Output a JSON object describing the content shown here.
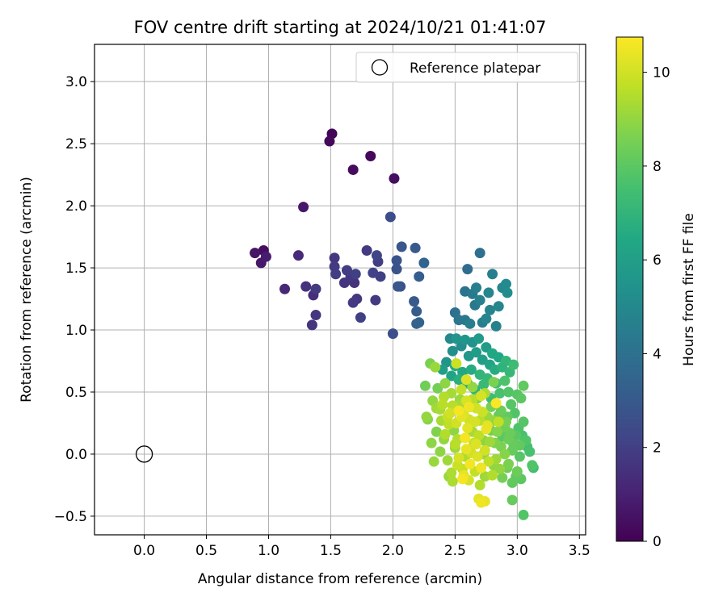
{
  "chart_data": {
    "type": "scatter",
    "title": "FOV centre drift starting at 2024/10/21 01:41:07",
    "xlabel": "Angular distance from reference (arcmin)",
    "ylabel": "Rotation from reference (arcmin)",
    "xlim": [
      -0.4,
      3.55
    ],
    "ylim": [
      -0.65,
      3.3
    ],
    "xticks": [
      0.0,
      0.5,
      1.0,
      1.5,
      2.0,
      2.5,
      3.0,
      3.5
    ],
    "xtick_labels": [
      "0.0",
      "0.5",
      "1.0",
      "1.5",
      "2.0",
      "2.5",
      "3.0",
      "3.5"
    ],
    "yticks": [
      -0.5,
      0.0,
      0.5,
      1.0,
      1.5,
      2.0,
      2.5,
      3.0
    ],
    "ytick_labels": [
      "−0.5",
      "0.0",
      "0.5",
      "1.0",
      "1.5",
      "2.0",
      "2.5",
      "3.0"
    ],
    "grid": true,
    "legend": {
      "position": "top-right",
      "entries": [
        {
          "label": "Reference platepar",
          "marker": "open-circle"
        }
      ]
    },
    "reference_point": {
      "x": 0.0,
      "y": 0.0
    },
    "colorbar": {
      "label": "Hours from first FF file",
      "colormap": "viridis",
      "range": [
        0,
        10.75
      ],
      "ticks": [
        0,
        2,
        4,
        6,
        8,
        10
      ],
      "tick_labels": [
        "0",
        "2",
        "4",
        "6",
        "8",
        "10"
      ]
    },
    "point_color_encoding": "hours",
    "points_columns": [
      "x",
      "y",
      "hours"
    ],
    "points": [
      [
        0.89,
        1.62,
        0.6
      ],
      [
        0.94,
        1.54,
        0.7
      ],
      [
        0.96,
        1.64,
        0.4
      ],
      [
        0.98,
        1.59,
        0.8
      ],
      [
        1.13,
        1.33,
        1.2
      ],
      [
        1.24,
        1.6,
        1.3
      ],
      [
        1.28,
        1.99,
        0.7
      ],
      [
        1.3,
        1.35,
        1.5
      ],
      [
        1.35,
        1.04,
        1.6
      ],
      [
        1.36,
        1.28,
        1.4
      ],
      [
        1.38,
        1.12,
        1.7
      ],
      [
        1.38,
        1.33,
        1.8
      ],
      [
        1.49,
        2.52,
        0.2
      ],
      [
        1.51,
        2.58,
        0.1
      ],
      [
        1.53,
        1.58,
        1.7
      ],
      [
        1.53,
        1.51,
        1.8
      ],
      [
        1.54,
        1.45,
        1.9
      ],
      [
        1.61,
        1.38,
        1.6
      ],
      [
        1.63,
        1.48,
        1.9
      ],
      [
        1.66,
        1.43,
        1.7
      ],
      [
        1.68,
        1.22,
        1.8
      ],
      [
        1.68,
        2.29,
        0.3
      ],
      [
        1.69,
        1.38,
        1.5
      ],
      [
        1.7,
        1.45,
        2.0
      ],
      [
        1.71,
        1.25,
        1.7
      ],
      [
        1.74,
        1.1,
        2.0
      ],
      [
        1.79,
        1.64,
        1.8
      ],
      [
        1.82,
        2.4,
        0.2
      ],
      [
        1.84,
        1.46,
        2.1
      ],
      [
        1.86,
        1.24,
        1.8
      ],
      [
        1.87,
        1.6,
        2.2
      ],
      [
        1.88,
        1.55,
        1.9
      ],
      [
        1.9,
        1.43,
        2.0
      ],
      [
        1.98,
        1.91,
        2.5
      ],
      [
        2.0,
        0.97,
        2.6
      ],
      [
        2.01,
        2.22,
        0.4
      ],
      [
        2.03,
        1.49,
        2.7
      ],
      [
        2.03,
        1.56,
        2.8
      ],
      [
        2.04,
        1.35,
        2.9
      ],
      [
        2.06,
        1.35,
        2.6
      ],
      [
        2.07,
        1.67,
        2.9
      ],
      [
        2.17,
        1.23,
        3.0
      ],
      [
        2.18,
        1.66,
        3.0
      ],
      [
        2.19,
        1.15,
        3.1
      ],
      [
        2.19,
        1.05,
        3.3
      ],
      [
        2.21,
        1.43,
        3.2
      ],
      [
        2.21,
        1.06,
        3.4
      ],
      [
        2.25,
        1.54,
        3.5
      ],
      [
        2.5,
        1.14,
        4.0
      ],
      [
        2.53,
        1.08,
        4.2
      ],
      [
        2.58,
        1.08,
        4.3
      ],
      [
        2.62,
        1.05,
        4.5
      ],
      [
        2.58,
        1.31,
        4.1
      ],
      [
        2.6,
        1.49,
        3.8
      ],
      [
        2.64,
        1.29,
        4.4
      ],
      [
        2.66,
        1.2,
        4.3
      ],
      [
        2.67,
        1.34,
        4.6
      ],
      [
        2.7,
        1.62,
        4.0
      ],
      [
        2.7,
        1.24,
        4.7
      ],
      [
        2.72,
        1.06,
        4.5
      ],
      [
        2.75,
        1.09,
        4.8
      ],
      [
        2.77,
        1.3,
        4.9
      ],
      [
        2.78,
        1.16,
        4.8
      ],
      [
        2.8,
        1.45,
        4.6
      ],
      [
        2.83,
        1.03,
        4.7
      ],
      [
        2.85,
        1.19,
        4.9
      ],
      [
        2.88,
        1.34,
        5.0
      ],
      [
        2.91,
        1.37,
        5.1
      ],
      [
        2.92,
        1.3,
        5.2
      ],
      [
        2.46,
        0.93,
        5.0
      ],
      [
        2.48,
        0.83,
        5.3
      ],
      [
        2.51,
        0.93,
        5.5
      ],
      [
        2.55,
        0.87,
        5.2
      ],
      [
        2.58,
        0.92,
        5.6
      ],
      [
        2.61,
        0.79,
        5.7
      ],
      [
        2.64,
        0.9,
        5.4
      ],
      [
        2.67,
        0.82,
        5.9
      ],
      [
        2.69,
        0.93,
        5.8
      ],
      [
        2.72,
        0.76,
        6.0
      ],
      [
        2.75,
        0.86,
        5.9
      ],
      [
        2.78,
        0.72,
        6.2
      ],
      [
        2.8,
        0.81,
        6.4
      ],
      [
        2.82,
        0.68,
        6.6
      ],
      [
        2.85,
        0.78,
        6.3
      ],
      [
        2.88,
        0.7,
        6.9
      ],
      [
        2.91,
        0.75,
        7.0
      ],
      [
        2.94,
        0.66,
        7.1
      ],
      [
        2.97,
        0.72,
        7.3
      ],
      [
        2.43,
        0.74,
        5.5
      ],
      [
        2.4,
        0.68,
        6.0
      ],
      [
        2.47,
        0.63,
        6.2
      ],
      [
        2.5,
        0.71,
        6.5
      ],
      [
        2.53,
        0.6,
        6.7
      ],
      [
        2.56,
        0.66,
        6.4
      ],
      [
        2.6,
        0.57,
        6.8
      ],
      [
        2.63,
        0.68,
        6.6
      ],
      [
        2.66,
        0.52,
        6.9
      ],
      [
        2.7,
        0.64,
        7.0
      ],
      [
        2.73,
        0.56,
        7.2
      ],
      [
        2.76,
        0.61,
        7.1
      ],
      [
        2.79,
        0.45,
        7.4
      ],
      [
        2.83,
        0.57,
        7.5
      ],
      [
        2.86,
        0.49,
        7.6
      ],
      [
        2.9,
        0.59,
        7.7
      ],
      [
        2.93,
        0.5,
        7.8
      ],
      [
        3.0,
        0.48,
        7.9
      ],
      [
        3.03,
        0.45,
        8.0
      ],
      [
        3.05,
        0.55,
        8.1
      ],
      [
        2.36,
        0.53,
        8.5
      ],
      [
        2.32,
        0.43,
        9.0
      ],
      [
        2.38,
        0.36,
        9.3
      ],
      [
        2.41,
        0.46,
        9.5
      ],
      [
        2.44,
        0.3,
        9.8
      ],
      [
        2.48,
        0.39,
        9.6
      ],
      [
        2.51,
        0.25,
        10.0
      ],
      [
        2.54,
        0.44,
        9.1
      ],
      [
        2.57,
        0.32,
        10.2
      ],
      [
        2.6,
        0.21,
        10.3
      ],
      [
        2.62,
        0.38,
        9.4
      ],
      [
        2.66,
        0.26,
        10.1
      ],
      [
        2.69,
        0.15,
        9.7
      ],
      [
        2.72,
        0.34,
        9.9
      ],
      [
        2.75,
        0.2,
        10.4
      ],
      [
        2.78,
        0.1,
        9.2
      ],
      [
        2.81,
        0.27,
        9.0
      ],
      [
        2.84,
        0.18,
        8.8
      ],
      [
        2.87,
        0.06,
        8.6
      ],
      [
        2.9,
        0.22,
        8.4
      ],
      [
        2.93,
        0.12,
        8.3
      ],
      [
        2.96,
        0.03,
        8.2
      ],
      [
        2.99,
        0.15,
        8.0
      ],
      [
        3.02,
        0.07,
        8.1
      ],
      [
        3.05,
        0.26,
        7.9
      ],
      [
        3.07,
        0.11,
        7.8
      ],
      [
        3.1,
        0.02,
        7.6
      ],
      [
        3.12,
        -0.09,
        7.8
      ],
      [
        3.03,
        -0.2,
        8.0
      ],
      [
        3.0,
        -0.14,
        8.3
      ],
      [
        2.96,
        -0.23,
        8.1
      ],
      [
        2.93,
        -0.08,
        8.6
      ],
      [
        2.9,
        0.0,
        8.8
      ],
      [
        2.86,
        -0.12,
        9.0
      ],
      [
        2.83,
        -0.04,
        9.2
      ],
      [
        2.8,
        -0.17,
        9.5
      ],
      [
        2.77,
        -0.06,
        9.7
      ],
      [
        2.74,
        0.03,
        10.0
      ],
      [
        2.71,
        -0.11,
        10.5
      ],
      [
        2.68,
        -0.02,
        10.2
      ],
      [
        2.65,
        0.09,
        9.9
      ],
      [
        2.62,
        -0.08,
        10.6
      ],
      [
        2.59,
        0.04,
        10.4
      ],
      [
        2.56,
        -0.12,
        9.8
      ],
      [
        2.53,
        -0.03,
        10.1
      ],
      [
        2.5,
        0.08,
        9.6
      ],
      [
        2.47,
        -0.15,
        9.4
      ],
      [
        2.44,
        -0.05,
        9.2
      ],
      [
        2.41,
        0.12,
        9.0
      ],
      [
        2.38,
        0.02,
        8.9
      ],
      [
        2.35,
        0.18,
        8.7
      ],
      [
        2.33,
        -0.06,
        9.1
      ],
      [
        2.31,
        0.09,
        8.9
      ],
      [
        2.28,
        0.28,
        8.8
      ],
      [
        2.26,
        0.55,
        8.4
      ],
      [
        2.3,
        0.73,
        8.6
      ],
      [
        2.34,
        0.7,
        9.1
      ],
      [
        2.42,
        0.57,
        8.9
      ],
      [
        2.47,
        0.49,
        9.3
      ],
      [
        2.55,
        0.52,
        9.8
      ],
      [
        2.59,
        0.43,
        10.1
      ],
      [
        2.64,
        0.54,
        9.0
      ],
      [
        2.68,
        0.45,
        8.7
      ],
      [
        2.74,
        0.49,
        9.4
      ],
      [
        2.79,
        0.38,
        8.5
      ],
      [
        2.83,
        0.41,
        10.7
      ],
      [
        2.87,
        0.35,
        8.3
      ],
      [
        2.92,
        0.3,
        8.1
      ],
      [
        2.95,
        0.4,
        7.9
      ],
      [
        2.98,
        0.33,
        7.8
      ],
      [
        3.01,
        0.21,
        7.7
      ],
      [
        3.04,
        0.15,
        7.6
      ],
      [
        2.49,
        0.19,
        8.9
      ],
      [
        2.52,
        0.12,
        9.5
      ],
      [
        2.55,
        0.3,
        10.3
      ],
      [
        2.58,
        0.13,
        10.6
      ],
      [
        2.61,
        0.28,
        10.0
      ],
      [
        2.64,
        0.18,
        9.3
      ],
      [
        2.67,
        0.08,
        10.2
      ],
      [
        2.7,
        0.27,
        9.6
      ],
      [
        2.73,
        0.11,
        8.9
      ],
      [
        2.76,
        0.3,
        9.1
      ],
      [
        2.79,
        0.19,
        8.4
      ],
      [
        2.82,
        0.09,
        8.7
      ],
      [
        2.85,
        0.31,
        8.2
      ],
      [
        2.88,
        0.14,
        8.0
      ],
      [
        2.91,
        0.26,
        8.5
      ],
      [
        2.94,
        0.17,
        8.3
      ],
      [
        2.97,
        0.08,
        8.2
      ],
      [
        2.45,
        0.24,
        9.7
      ],
      [
        2.42,
        0.16,
        9.5
      ],
      [
        2.39,
        0.27,
        9.3
      ],
      [
        2.52,
        -0.09,
        9.9
      ],
      [
        2.57,
        -0.17,
        10.4
      ],
      [
        2.61,
        -0.21,
        10.1
      ],
      [
        2.66,
        -0.14,
        9.8
      ],
      [
        2.7,
        -0.25,
        9.5
      ],
      [
        2.74,
        -0.18,
        9.2
      ],
      [
        2.45,
        -0.18,
        9.1
      ],
      [
        2.48,
        -0.22,
        9.4
      ],
      [
        2.56,
        -0.2,
        10.6
      ],
      [
        2.69,
        -0.36,
        10.3
      ],
      [
        2.71,
        -0.39,
        10.5
      ],
      [
        2.74,
        -0.38,
        10.4
      ],
      [
        2.96,
        -0.37,
        8.2
      ],
      [
        3.05,
        -0.49,
        7.8
      ],
      [
        3.13,
        -0.11,
        7.5
      ],
      [
        2.51,
        0.73,
        9.9
      ],
      [
        2.53,
        0.35,
        10.6
      ],
      [
        2.59,
        0.6,
        10.2
      ],
      [
        2.71,
        0.47,
        10.1
      ],
      [
        2.81,
        0.58,
        8.6
      ],
      [
        2.85,
        0.26,
        9.7
      ],
      [
        2.61,
        0.38,
        10.5
      ],
      [
        2.67,
        0.37,
        10.0
      ],
      [
        2.76,
        0.23,
        10.3
      ],
      [
        2.5,
        0.05,
        9.2
      ],
      [
        2.58,
        -0.02,
        9.4
      ],
      [
        2.63,
        0.01,
        10.0
      ],
      [
        2.73,
        0.0,
        9.0
      ],
      [
        2.81,
        -0.09,
        8.9
      ],
      [
        2.88,
        -0.19,
        8.5
      ],
      [
        2.92,
        -0.11,
        8.4
      ],
      [
        2.99,
        -0.18,
        8.1
      ],
      [
        3.02,
        -0.02,
        7.9
      ],
      [
        3.08,
        0.06,
        7.5
      ],
      [
        2.27,
        0.3,
        9.0
      ],
      [
        2.35,
        0.37,
        9.2
      ],
      [
        2.4,
        0.4,
        9.6
      ],
      [
        2.46,
        0.33,
        10.0
      ],
      [
        2.54,
        0.39,
        9.3
      ],
      [
        2.64,
        0.44,
        9.6
      ]
    ]
  }
}
